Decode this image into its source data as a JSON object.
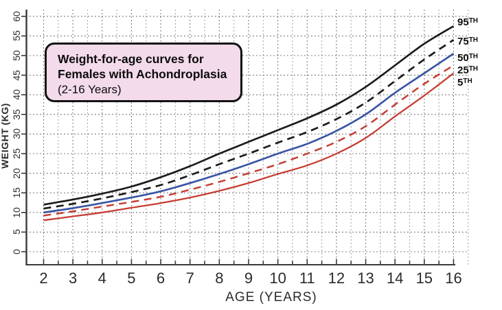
{
  "chart_data": {
    "type": "line",
    "title_lines": [
      "Weight-for-age curves for",
      "Females with Achondroplasia",
      "(2-16 Years)"
    ],
    "xlabel": "AGE (YEARS)",
    "ylabel": "WEIGHT (KG)",
    "xlim": [
      2,
      16.5
    ],
    "ylim": [
      0,
      60
    ],
    "x_ticks": [
      2,
      3,
      4,
      5,
      6,
      7,
      8,
      9,
      10,
      11,
      12,
      13,
      14,
      15,
      16
    ],
    "x_minor_step": 0.5,
    "y_ticks": [
      0,
      5,
      10,
      15,
      20,
      25,
      30,
      35,
      40,
      45,
      50,
      55,
      60
    ],
    "grid": "dotted",
    "legend_position": "right of line ends",
    "x": [
      2,
      3,
      4,
      5,
      6,
      7,
      8,
      9,
      10,
      11,
      12,
      13,
      14,
      15,
      16
    ],
    "series": [
      {
        "name": "95TH",
        "num": "95",
        "sup": "TH",
        "color": "#1c1c1c",
        "style": "solid",
        "values": [
          12.0,
          13.3,
          14.8,
          16.6,
          19.0,
          21.8,
          25.0,
          28.0,
          31.0,
          34.0,
          37.5,
          42.0,
          47.5,
          53.0,
          57.5
        ]
      },
      {
        "name": "75TH",
        "num": "75",
        "sup": "TH",
        "color": "#1c1c1c",
        "style": "dashed",
        "values": [
          11.0,
          12.2,
          13.6,
          15.2,
          17.0,
          19.5,
          22.3,
          25.0,
          27.8,
          30.5,
          33.8,
          38.0,
          43.5,
          49.0,
          54.0
        ]
      },
      {
        "name": "50TH",
        "num": "50",
        "sup": "TH",
        "color": "#3a55a4",
        "style": "solid",
        "values": [
          10.0,
          11.1,
          12.4,
          13.8,
          15.4,
          17.5,
          19.8,
          22.3,
          25.0,
          27.5,
          30.8,
          35.0,
          40.5,
          45.5,
          50.5
        ]
      },
      {
        "name": "25TH",
        "num": "25",
        "sup": "TH",
        "color": "#c63d33",
        "style": "dashed",
        "values": [
          9.2,
          10.3,
          11.5,
          12.7,
          14.0,
          15.8,
          17.8,
          20.0,
          22.3,
          25.0,
          28.0,
          32.0,
          37.5,
          42.8,
          47.5
        ]
      },
      {
        "name": "5TH",
        "num": "5",
        "sup": "TH",
        "color": "#c63d33",
        "style": "solid",
        "values": [
          8.0,
          9.0,
          10.0,
          11.2,
          12.4,
          13.8,
          15.5,
          17.5,
          19.8,
          22.0,
          25.0,
          29.0,
          34.5,
          39.8,
          45.5
        ]
      }
    ],
    "colors": {
      "black_line": "#1c1c1c",
      "blue_line": "#3a55a4",
      "red_line": "#c63d33",
      "grid_minor": "#9a9a9a",
      "grid_major": "#6e6e6e",
      "axis": "#3a3a3a",
      "title_box_fill": "#f3dbeb",
      "title_box_border": "#111111"
    }
  }
}
